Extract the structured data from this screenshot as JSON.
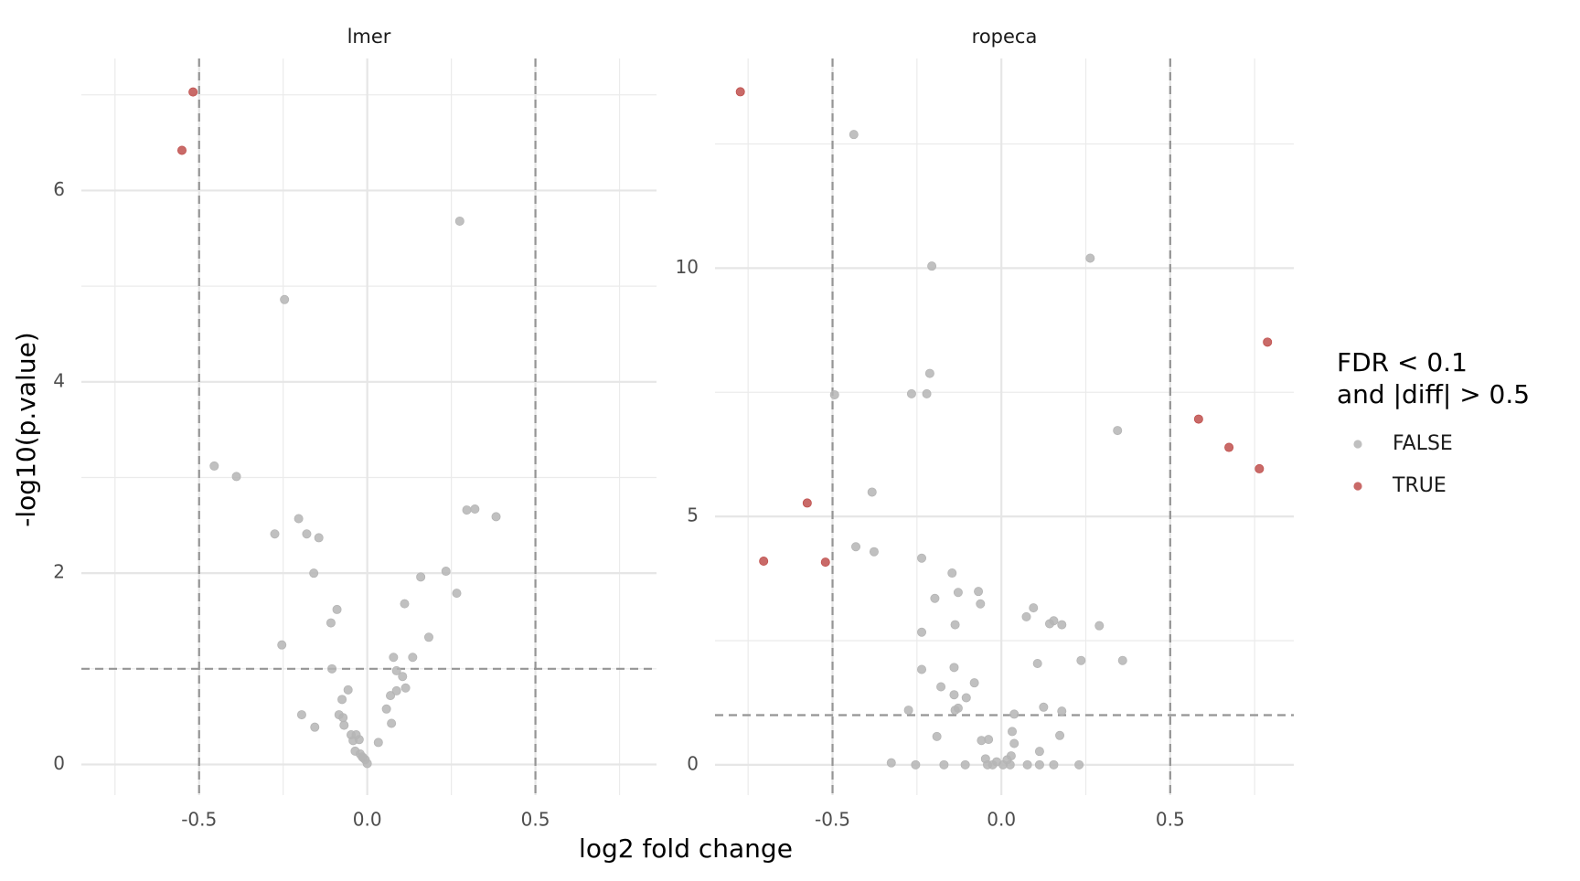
{
  "chart_data": [
    {
      "type": "scatter",
      "title": "lmer",
      "xlim": [
        -0.85,
        0.86
      ],
      "ylim": [
        -0.32,
        7.38
      ],
      "xticks": [
        -0.5,
        {
          "value": 0,
          "label": "0.0"
        },
        0.5
      ],
      "yticks": [
        0,
        2,
        4,
        6
      ],
      "grid": true,
      "vlines": [
        -0.5,
        0.5
      ],
      "hline": 1,
      "series": [
        {
          "name": "FALSE",
          "color": "#b5b5b5",
          "x": [
            0.275,
            -0.246,
            -0.455,
            -0.389,
            0.296,
            0.32,
            0.383,
            -0.204,
            -0.275,
            -0.18,
            -0.144,
            -0.159,
            0.234,
            0.159,
            0.266,
            0.111,
            -0.09,
            -0.108,
            0.183,
            -0.254,
            0.078,
            0.135,
            -0.105,
            0.087,
            0.105,
            -0.057,
            0.114,
            0.087,
            0.069,
            -0.075,
            0.057,
            -0.195,
            -0.084,
            -0.072,
            -0.156,
            -0.069,
            0.072,
            -0.048,
            -0.033,
            -0.042,
            -0.024,
            0.033,
            -0.036,
            -0.021,
            -0.012,
            -0.006,
            0,
            -0.015
          ],
          "values": [
            5.68,
            4.86,
            3.12,
            3.01,
            2.66,
            2.67,
            2.59,
            2.57,
            2.41,
            2.41,
            2.37,
            2.0,
            2.02,
            1.96,
            1.79,
            1.68,
            1.62,
            1.48,
            1.33,
            1.25,
            1.12,
            1.12,
            1.0,
            0.98,
            0.92,
            0.78,
            0.8,
            0.77,
            0.72,
            0.68,
            0.58,
            0.52,
            0.52,
            0.49,
            0.39,
            0.41,
            0.43,
            0.31,
            0.31,
            0.25,
            0.26,
            0.23,
            0.14,
            0.11,
            0.07,
            0.05,
            0.01,
            0.08
          ]
        },
        {
          "name": "TRUE",
          "color": "#c0504d",
          "x": [
            -0.518,
            -0.551
          ],
          "values": [
            7.03,
            6.42
          ]
        }
      ]
    },
    {
      "type": "scatter",
      "title": "ropeca",
      "xlim": [
        -0.848,
        0.866
      ],
      "ylim": [
        -0.61,
        14.22
      ],
      "xticks": [
        -0.5,
        {
          "value": 0,
          "label": "0.0"
        },
        0.5
      ],
      "yticks": [
        0,
        5,
        10
      ],
      "grid": true,
      "vlines": [
        -0.5,
        0.5
      ],
      "hline": 1,
      "series": [
        {
          "name": "FALSE",
          "color": "#b5b5b5",
          "x": [
            -0.437,
            0.263,
            -0.206,
            -0.212,
            -0.266,
            -0.221,
            -0.494,
            0.344,
            -0.383,
            -0.431,
            -0.377,
            -0.236,
            -0.146,
            -0.068,
            -0.128,
            -0.197,
            -0.062,
            0.095,
            0.074,
            0.155,
            0.143,
            0.179,
            0.29,
            -0.137,
            -0.236,
            0.236,
            0.359,
            0.107,
            -0.236,
            -0.14,
            -0.08,
            -0.179,
            -0.14,
            -0.104,
            -0.275,
            0.125,
            -0.128,
            -0.137,
            0.179,
            0.038,
            -0.191,
            0.173,
            0.032,
            -0.038,
            -0.059,
            0.038,
            0.113,
            -0.047,
            0.029,
            0.017,
            -0.326,
            -0.254,
            -0.17,
            -0.107,
            -0.041,
            -0.026,
            -0.014,
            0.005,
            0.026,
            0.077,
            0.113,
            0.155,
            0.23
          ],
          "values": [
            12.69,
            10.2,
            10.04,
            7.88,
            7.47,
            7.47,
            7.45,
            6.73,
            5.49,
            4.39,
            4.29,
            4.16,
            3.86,
            3.49,
            3.47,
            3.35,
            3.24,
            3.16,
            2.98,
            2.9,
            2.84,
            2.82,
            2.8,
            2.82,
            2.67,
            2.1,
            2.1,
            2.04,
            1.92,
            1.96,
            1.65,
            1.57,
            1.41,
            1.35,
            1.1,
            1.16,
            1.14,
            1.1,
            1.08,
            1.02,
            0.57,
            0.59,
            0.67,
            0.51,
            0.49,
            0.43,
            0.27,
            0.12,
            0.18,
            0.1,
            0.04,
            0.0,
            0.0,
            0.0,
            0.0,
            0.0,
            0.06,
            0.0,
            0.0,
            0.0,
            0.0,
            0.0,
            0.0
          ]
        },
        {
          "name": "TRUE",
          "color": "#c0504d",
          "x": [
            -0.773,
            0.788,
            0.584,
            0.674,
            0.764,
            -0.575,
            -0.704,
            -0.521
          ],
          "values": [
            13.55,
            8.51,
            6.96,
            6.39,
            5.96,
            5.27,
            4.1,
            4.08
          ]
        }
      ]
    }
  ],
  "x_label": "log2 fold change",
  "y_label": "-log10(p.value)",
  "legend": {
    "title": [
      "FDR < 0.1",
      "and |diff| > 0.5"
    ],
    "position": "right"
  }
}
